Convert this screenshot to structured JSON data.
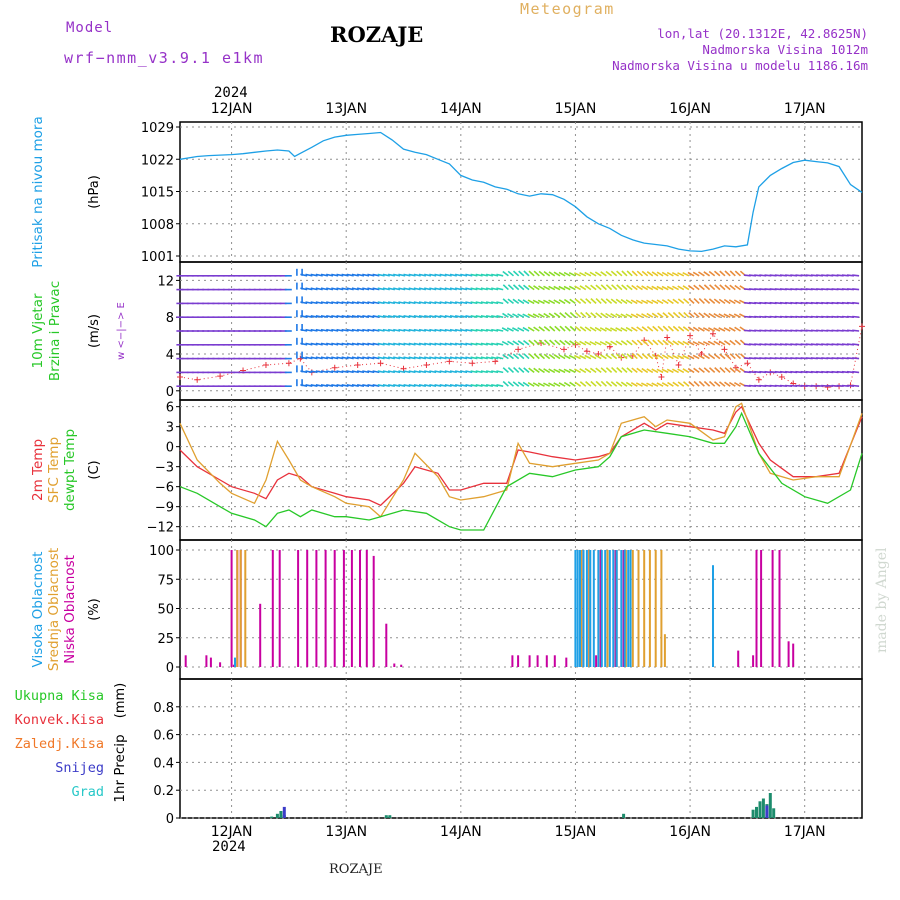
{
  "header": {
    "model_label": "Model",
    "model_name": "wrf−nmm_v3.9.1 e1km",
    "title": "ROZAJE",
    "meteogram_label": "Meteogram",
    "lonlat": "lon,lat (20.1312E, 42.8625N)",
    "elevation": "Nadmorska Visina 1012m",
    "model_elevation": "Nadmorska Visina u modelu 1186.16m",
    "year_top": "2024",
    "year_bottom": "2024",
    "footer": "ROZAJE",
    "watermark": "made by Angel"
  },
  "colors": {
    "pressure": "#1ea0e6",
    "t2m": "#e8323c",
    "sfc": "#e0a030",
    "dewpt": "#28c828",
    "high_cloud": "#1ea0e6",
    "mid_cloud": "#e0a030",
    "low_cloud": "#c800a0",
    "total_precip": "#28c828",
    "conv_precip": "#e8323c",
    "frz_precip": "#f07828",
    "snow": "#3c3cc8",
    "graupel": "#28c8c8",
    "wind_scale": "#9632c8",
    "grid": "#909090"
  },
  "chart_data": [
    {
      "id": "pressure",
      "type": "line",
      "ylabel_lines": [
        "Pritisak na nivou mora"
      ],
      "unit": "(hPa)",
      "ylim": [
        1001,
        1029
      ],
      "yticks": [
        "1001",
        "1008",
        "1015",
        "1022",
        "1029"
      ],
      "xticks": [
        "12JAN",
        "13JAN",
        "14JAN",
        "15JAN",
        "16JAN",
        "17JAN"
      ],
      "xlim_days": [
        11.55,
        17.5
      ],
      "grid": true,
      "series": [
        {
          "key": "pressure",
          "x": [
            11.55,
            11.7,
            11.8,
            12.0,
            12.1,
            12.2,
            12.3,
            12.4,
            12.5,
            12.55,
            12.6,
            12.7,
            12.8,
            12.9,
            13.0,
            13.1,
            13.2,
            13.3,
            13.4,
            13.5,
            13.6,
            13.7,
            13.8,
            13.9,
            14.0,
            14.1,
            14.2,
            14.3,
            14.4,
            14.5,
            14.6,
            14.7,
            14.8,
            14.9,
            15.0,
            15.1,
            15.2,
            15.3,
            15.4,
            15.5,
            15.6,
            15.7,
            15.8,
            15.9,
            16.0,
            16.1,
            16.2,
            16.3,
            16.4,
            16.5,
            16.55,
            16.6,
            16.7,
            16.8,
            16.9,
            17.0,
            17.1,
            17.2,
            17.3,
            17.4,
            17.5
          ],
          "y": [
            1022,
            1022.6,
            1022.8,
            1023,
            1023.2,
            1023.5,
            1023.8,
            1024,
            1023.8,
            1022.6,
            1023.3,
            1024.6,
            1026,
            1026.8,
            1027.2,
            1027.4,
            1027.6,
            1027.8,
            1026.2,
            1024.2,
            1023.5,
            1023,
            1022,
            1021,
            1018.5,
            1017.5,
            1017,
            1016,
            1015.5,
            1014.5,
            1014,
            1014.5,
            1014.3,
            1013.3,
            1011.7,
            1009.5,
            1008,
            1007,
            1005.5,
            1004.5,
            1003.8,
            1003.5,
            1003.2,
            1002.5,
            1002.1,
            1002,
            1002.5,
            1003.2,
            1003.0,
            1003.4,
            1010.5,
            1016,
            1018.5,
            1020,
            1021.3,
            1021.8,
            1021.5,
            1021.2,
            1020.4,
            1016.5,
            1014.8
          ]
        }
      ]
    },
    {
      "id": "wind",
      "type": "line",
      "ylabel_lines": [
        "10m Vjetar",
        "Brzina i Pravac"
      ],
      "unit": "(m/s)",
      "ylim": [
        -1,
        14
      ],
      "yticks": [
        "0",
        "4",
        "8",
        "12"
      ],
      "direction_key": "w <−|−> E",
      "grid": true,
      "series": [
        {
          "key": "speed",
          "x": [
            11.55,
            11.7,
            11.9,
            12.1,
            12.3,
            12.5,
            12.6,
            12.7,
            12.9,
            13.1,
            13.3,
            13.5,
            13.7,
            13.9,
            14.1,
            14.3,
            14.5,
            14.7,
            14.9,
            15.0,
            15.1,
            15.2,
            15.3,
            15.4,
            15.5,
            15.6,
            15.7,
            15.75,
            15.8,
            15.9,
            16.0,
            16.1,
            16.2,
            16.3,
            16.4,
            16.5,
            16.6,
            16.7,
            16.8,
            16.9,
            17.0,
            17.1,
            17.2,
            17.3,
            17.4,
            17.5
          ],
          "y": [
            1.5,
            1.2,
            1.6,
            2.2,
            2.8,
            3.0,
            3.5,
            2.0,
            2.5,
            2.8,
            3.0,
            2.4,
            2.8,
            3.2,
            3.0,
            3.2,
            4.5,
            5.2,
            4.5,
            5.0,
            4.3,
            4.0,
            4.8,
            3.6,
            3.8,
            5.5,
            3.8,
            1.5,
            5.8,
            2.8,
            6.0,
            4.0,
            6.2,
            4.5,
            2.5,
            3.0,
            1.2,
            2.0,
            1.5,
            0.8,
            0.5,
            0.5,
            0.4,
            0.5,
            0.6,
            7.0
          ]
        }
      ]
    },
    {
      "id": "temperature",
      "type": "line",
      "ylabel_lines": [
        "2m Temp",
        "SFC Temp",
        "dewpt Temp"
      ],
      "unit": "(C)",
      "ylim": [
        -14,
        7
      ],
      "yticks": [
        "6",
        "3",
        "0",
        "−3",
        "−6",
        "−9",
        "−12"
      ],
      "grid": true,
      "series": [
        {
          "key": "t2m",
          "x": [
            11.55,
            11.7,
            11.9,
            12.0,
            12.2,
            12.3,
            12.4,
            12.5,
            12.6,
            12.7,
            12.9,
            13.0,
            13.2,
            13.3,
            13.5,
            13.6,
            13.8,
            13.9,
            14.0,
            14.2,
            14.4,
            14.5,
            14.6,
            14.8,
            15.0,
            15.2,
            15.3,
            15.4,
            15.6,
            15.7,
            15.8,
            16.0,
            16.2,
            16.3,
            16.4,
            16.45,
            16.6,
            16.7,
            16.9,
            17.1,
            17.3,
            17.5
          ],
          "y": [
            -0.5,
            -3.0,
            -5.0,
            -6.0,
            -7.0,
            -7.8,
            -5.0,
            -4.0,
            -4.5,
            -6.0,
            -7.0,
            -7.5,
            -8.0,
            -8.8,
            -5.5,
            -3.0,
            -4.0,
            -6.5,
            -6.5,
            -5.5,
            -5.5,
            -0.5,
            -0.8,
            -1.5,
            -2.0,
            -1.5,
            -1.0,
            1.5,
            3.5,
            2.5,
            3.5,
            3.0,
            2.5,
            2.0,
            5.2,
            6.0,
            0.5,
            -2.0,
            -4.5,
            -4.5,
            -4.0,
            4.5
          ]
        },
        {
          "key": "sfc",
          "x": [
            11.55,
            11.7,
            11.9,
            12.0,
            12.2,
            12.3,
            12.4,
            12.5,
            12.6,
            12.7,
            12.9,
            13.0,
            13.2,
            13.3,
            13.5,
            13.6,
            13.8,
            13.9,
            14.0,
            14.2,
            14.4,
            14.5,
            14.6,
            14.8,
            15.0,
            15.2,
            15.3,
            15.4,
            15.6,
            15.7,
            15.8,
            16.0,
            16.2,
            16.3,
            16.4,
            16.45,
            16.6,
            16.7,
            16.9,
            17.1,
            17.3,
            17.5
          ],
          "y": [
            3.5,
            -2.0,
            -5.5,
            -7.0,
            -8.5,
            -5.0,
            0.8,
            -2.0,
            -5.0,
            -6.0,
            -7.5,
            -8.5,
            -9.0,
            -10.5,
            -5.0,
            -1.0,
            -4.5,
            -7.5,
            -8.0,
            -7.5,
            -6.5,
            0.5,
            -2.5,
            -3.0,
            -2.5,
            -2.0,
            -1.0,
            3.5,
            4.5,
            3.0,
            4.0,
            3.5,
            1.0,
            1.5,
            6.0,
            6.5,
            -1.0,
            -4.0,
            -5.0,
            -4.5,
            -4.5,
            5.0
          ]
        },
        {
          "key": "dewpt",
          "x": [
            11.55,
            11.7,
            11.9,
            12.0,
            12.2,
            12.3,
            12.4,
            12.5,
            12.6,
            12.7,
            12.9,
            13.0,
            13.2,
            13.3,
            13.5,
            13.7,
            13.9,
            14.0,
            14.2,
            14.4,
            14.6,
            14.8,
            15.0,
            15.2,
            15.3,
            15.4,
            15.6,
            15.8,
            16.0,
            16.2,
            16.3,
            16.4,
            16.45,
            16.6,
            16.8,
            17.0,
            17.2,
            17.4,
            17.5
          ],
          "y": [
            -6.0,
            -7.0,
            -9.0,
            -10.0,
            -11.0,
            -12.0,
            -10.0,
            -9.5,
            -10.5,
            -9.5,
            -10.5,
            -10.5,
            -11.0,
            -10.5,
            -9.5,
            -10.0,
            -12.0,
            -12.5,
            -12.5,
            -6.0,
            -4.0,
            -4.5,
            -3.5,
            -3.0,
            -1.5,
            1.5,
            2.5,
            2.0,
            1.5,
            0.5,
            0.5,
            3.0,
            5.0,
            -1.0,
            -5.5,
            -7.5,
            -8.5,
            -6.5,
            -1.0
          ]
        }
      ]
    },
    {
      "id": "cloud",
      "type": "bar",
      "ylabel_lines": [
        "Visoka Oblacnost",
        "Srednja Oblacnost",
        "Niska Oblacnost"
      ],
      "unit": "(%)",
      "ylim": [
        0,
        100
      ],
      "yticks": [
        "100",
        "75",
        "50",
        "25",
        "0"
      ],
      "grid": true,
      "series": [
        {
          "key": "low_cloud",
          "x": [
            11.6,
            11.78,
            11.82,
            11.9,
            12.0,
            12.02,
            12.05,
            12.08,
            12.25,
            12.36,
            12.42,
            12.58,
            12.66,
            12.74,
            12.82,
            12.9,
            12.98,
            13.05,
            13.12,
            13.18,
            13.24,
            13.35,
            13.42,
            13.48,
            14.45,
            14.5,
            14.6,
            14.67,
            14.75,
            14.82,
            14.92,
            15.05,
            15.12,
            15.18,
            15.22,
            15.35,
            15.42,
            15.48,
            15.55,
            16.42,
            16.55,
            16.58,
            16.62,
            16.72,
            16.78,
            16.86,
            16.9
          ],
          "y": [
            10,
            10,
            8,
            4,
            100,
            2,
            100,
            100,
            54,
            100,
            100,
            100,
            100,
            100,
            100,
            100,
            100,
            100,
            100,
            100,
            95,
            37,
            3,
            2,
            10,
            10,
            10,
            10,
            10,
            10,
            8,
            100,
            100,
            10,
            100,
            100,
            100,
            100,
            10,
            14,
            10,
            100,
            100,
            100,
            100,
            22,
            20
          ]
        },
        {
          "key": "mid_cloud",
          "x": [
            12.05,
            12.08,
            12.12,
            15.05,
            15.12,
            15.2,
            15.28,
            15.36,
            15.44,
            15.5,
            15.55,
            15.6,
            15.65,
            15.7,
            15.75,
            15.78
          ],
          "y": [
            100,
            100,
            100,
            100,
            100,
            100,
            100,
            100,
            100,
            100,
            100,
            100,
            100,
            100,
            100,
            28
          ]
        },
        {
          "key": "high_cloud",
          "x": [
            12.03,
            15.0,
            15.02,
            15.04,
            15.07,
            15.1,
            15.13,
            15.16,
            15.2,
            15.23,
            15.26,
            15.3,
            15.33,
            15.36,
            15.4,
            15.43,
            15.46,
            15.48,
            16.2
          ],
          "y": [
            8,
            100,
            100,
            100,
            100,
            100,
            100,
            100,
            100,
            100,
            100,
            100,
            100,
            100,
            100,
            100,
            100,
            100,
            87
          ]
        }
      ]
    },
    {
      "id": "precip",
      "type": "bar",
      "ylabel_lines": [
        "1hr Precip"
      ],
      "unit": "(mm)",
      "ylim": [
        0,
        1
      ],
      "yticks": [
        "0.8",
        "0.6",
        "0.4",
        "0.2",
        "0"
      ],
      "legend": [
        "Ukupna Kisa",
        "Konvek.Kisa",
        "Zaledj.Kisa",
        "Snijeg",
        "Grad"
      ],
      "grid": true,
      "series": [
        {
          "key": "total_precip",
          "x": [
            12.35,
            12.4,
            12.43,
            12.46,
            13.35,
            13.38,
            15.42,
            16.55,
            16.58,
            16.61,
            16.64,
            16.67,
            16.7,
            16.73
          ],
          "y": [
            0.01,
            0.03,
            0.05,
            0.02,
            0.02,
            0.02,
            0.03,
            0.06,
            0.08,
            0.12,
            0.14,
            0.1,
            0.18,
            0.07
          ]
        },
        {
          "key": "snow",
          "x": [
            12.46,
            16.67
          ],
          "y": [
            0.08,
            0.09
          ]
        }
      ]
    }
  ]
}
